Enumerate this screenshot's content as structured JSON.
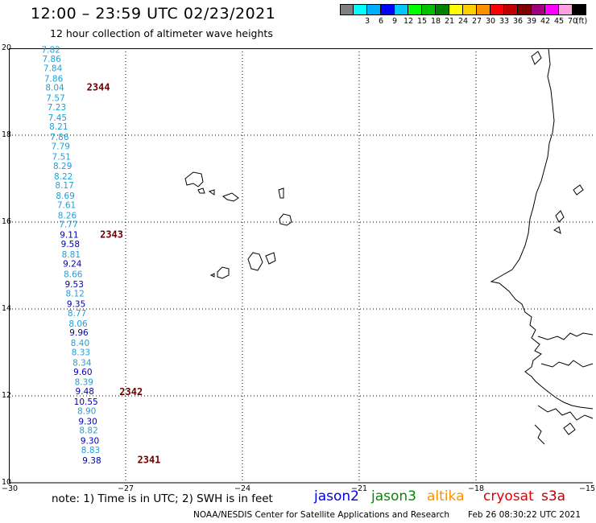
{
  "header": {
    "title": "12:00 – 23:59 UTC 02/23/2021",
    "subtitle": "12 hour collection of altimeter wave heights"
  },
  "color_scale": {
    "unit_label": "(ft)",
    "levels": [
      {
        "label": "",
        "color": "#808080"
      },
      {
        "label": "3",
        "color": "#00ffff"
      },
      {
        "label": "6",
        "color": "#00b0ff"
      },
      {
        "label": "9",
        "color": "#0000ff"
      },
      {
        "label": "12",
        "color": "#00c8ff"
      },
      {
        "label": "15",
        "color": "#00ff00"
      },
      {
        "label": "18",
        "color": "#00c000"
      },
      {
        "label": "21",
        "color": "#008000"
      },
      {
        "label": "24",
        "color": "#ffff00"
      },
      {
        "label": "27",
        "color": "#ffd000"
      },
      {
        "label": "30",
        "color": "#ff9000"
      },
      {
        "label": "33",
        "color": "#ff0000"
      },
      {
        "label": "36",
        "color": "#c00000"
      },
      {
        "label": "39",
        "color": "#800000"
      },
      {
        "label": "42",
        "color": "#a00080"
      },
      {
        "label": "45",
        "color": "#ff00ff"
      },
      {
        "label": "70",
        "color": "#ffa0e0"
      },
      {
        "label": "",
        "color": "#000000"
      }
    ]
  },
  "map": {
    "lon_labels": [
      "−30",
      "−27",
      "−24",
      "−21",
      "−18",
      "−15"
    ],
    "lat_labels": [
      "20",
      "18",
      "16",
      "14",
      "12",
      "10"
    ],
    "lon_ticks": [
      -30,
      -27,
      -24,
      -21,
      -18,
      -15
    ],
    "lat_ticks": [
      20,
      18,
      16,
      14,
      12,
      10
    ]
  },
  "chart_data": {
    "type": "scatter",
    "x_range": [
      -30,
      -15
    ],
    "y_range": [
      10,
      20
    ],
    "xlabel": "",
    "ylabel": "",
    "title": "12:00 – 23:59 UTC 02/23/2021",
    "track_colors": {
      "light": "#1e9fd8",
      "dark": "#0000b4"
    },
    "observations": [
      {
        "lon": -28.92,
        "lat": 19.97,
        "swh": "7.82",
        "c": "light"
      },
      {
        "lon": -28.9,
        "lat": 19.76,
        "swh": "7.86",
        "c": "light"
      },
      {
        "lon": -28.87,
        "lat": 19.55,
        "swh": "7.84",
        "c": "light"
      },
      {
        "lon": -28.85,
        "lat": 19.31,
        "swh": "7.86",
        "c": "light"
      },
      {
        "lon": -28.82,
        "lat": 19.1,
        "swh": "8.04",
        "c": "light"
      },
      {
        "lon": -28.8,
        "lat": 18.86,
        "swh": "7.57",
        "c": "light"
      },
      {
        "lon": -28.77,
        "lat": 18.65,
        "swh": "7.23",
        "c": "light"
      },
      {
        "lon": -28.75,
        "lat": 18.41,
        "swh": "7.45",
        "c": "light"
      },
      {
        "lon": -28.72,
        "lat": 18.2,
        "swh": "8.21",
        "c": "light"
      },
      {
        "lon": -28.7,
        "lat": 17.96,
        "swh": "7.86",
        "c": "light"
      },
      {
        "lon": -28.67,
        "lat": 17.75,
        "swh": "7.79",
        "c": "light"
      },
      {
        "lon": -28.65,
        "lat": 17.51,
        "swh": "7.51",
        "c": "light"
      },
      {
        "lon": -28.62,
        "lat": 17.3,
        "swh": "8.29",
        "c": "light"
      },
      {
        "lon": -28.6,
        "lat": 17.06,
        "swh": "8.22",
        "c": "light"
      },
      {
        "lon": -28.57,
        "lat": 16.85,
        "swh": "8.17",
        "c": "light"
      },
      {
        "lon": -28.55,
        "lat": 16.61,
        "swh": "8.69",
        "c": "light"
      },
      {
        "lon": -28.52,
        "lat": 16.4,
        "swh": "7.61",
        "c": "light"
      },
      {
        "lon": -28.5,
        "lat": 16.16,
        "swh": "8.26",
        "c": "light"
      },
      {
        "lon": -28.47,
        "lat": 15.95,
        "swh": "7.77",
        "c": "light"
      },
      {
        "lon": -28.45,
        "lat": 15.71,
        "swh": "9.11",
        "c": "dark"
      },
      {
        "lon": -28.42,
        "lat": 15.5,
        "swh": "9.58",
        "c": "dark"
      },
      {
        "lon": -28.4,
        "lat": 15.26,
        "swh": "8.81",
        "c": "light"
      },
      {
        "lon": -28.37,
        "lat": 15.05,
        "swh": "9.24",
        "c": "dark"
      },
      {
        "lon": -28.35,
        "lat": 14.81,
        "swh": "8.66",
        "c": "light"
      },
      {
        "lon": -28.32,
        "lat": 14.57,
        "swh": "9.53",
        "c": "dark"
      },
      {
        "lon": -28.3,
        "lat": 14.36,
        "swh": "8.12",
        "c": "light"
      },
      {
        "lon": -28.27,
        "lat": 14.12,
        "swh": "9.35",
        "c": "dark"
      },
      {
        "lon": -28.25,
        "lat": 13.91,
        "swh": "8.77",
        "c": "light"
      },
      {
        "lon": -28.22,
        "lat": 13.67,
        "swh": "8.06",
        "c": "light"
      },
      {
        "lon": -28.2,
        "lat": 13.46,
        "swh": "9.96",
        "c": "dark"
      },
      {
        "lon": -28.17,
        "lat": 13.22,
        "swh": "8.40",
        "c": "light"
      },
      {
        "lon": -28.15,
        "lat": 13.01,
        "swh": "8.33",
        "c": "light"
      },
      {
        "lon": -28.12,
        "lat": 12.77,
        "swh": "8.34",
        "c": "light"
      },
      {
        "lon": -28.1,
        "lat": 12.56,
        "swh": "9.60",
        "c": "dark"
      },
      {
        "lon": -28.07,
        "lat": 12.32,
        "swh": "8.39",
        "c": "light"
      },
      {
        "lon": -28.05,
        "lat": 12.11,
        "swh": "9.48",
        "c": "dark"
      },
      {
        "lon": -28.02,
        "lat": 11.87,
        "swh": "10.55",
        "c": "dark"
      },
      {
        "lon": -28.0,
        "lat": 11.66,
        "swh": "8.90",
        "c": "light"
      },
      {
        "lon": -27.97,
        "lat": 11.42,
        "swh": "9.30",
        "c": "dark"
      },
      {
        "lon": -27.95,
        "lat": 11.21,
        "swh": "8.82",
        "c": "light"
      },
      {
        "lon": -27.92,
        "lat": 10.97,
        "swh": "9.30",
        "c": "dark"
      },
      {
        "lon": -27.9,
        "lat": 10.76,
        "swh": "8.83",
        "c": "light"
      },
      {
        "lon": -27.87,
        "lat": 10.52,
        "swh": "9.38",
        "c": "dark"
      }
    ],
    "time_marks": [
      {
        "lon": -28.0,
        "lat": 19.1,
        "label": "2344"
      },
      {
        "lon": -27.66,
        "lat": 15.71,
        "label": "2343"
      },
      {
        "lon": -27.16,
        "lat": 12.09,
        "label": "2342"
      },
      {
        "lon": -26.7,
        "lat": 10.53,
        "label": "2341"
      }
    ],
    "time_mark_color": "#6e0000"
  },
  "footer": {
    "note": "note:  1) Time is in UTC;  2) SWH is in feet",
    "legend": [
      {
        "name": "jason2",
        "color": "#0000e0"
      },
      {
        "name": "jason3",
        "color": "#008c00"
      },
      {
        "name": "altika",
        "color": "#ff9000"
      },
      {
        "name": "cryosat",
        "color": "#e00000"
      },
      {
        "name": "s3a",
        "color": "#c00000"
      }
    ],
    "credit": "NOAA/NESDIS Center for Satellite Applications and Research",
    "timestamp": "Feb 26 08:30:22 UTC 2021"
  }
}
